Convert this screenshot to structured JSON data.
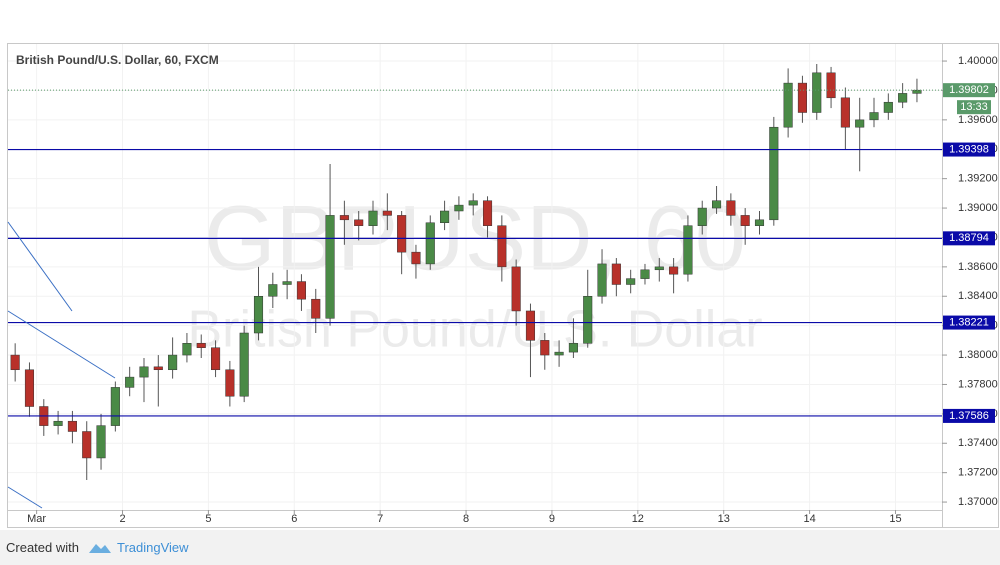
{
  "chart_data": {
    "type": "candlestick",
    "title": "British Pound/U.S. Dollar, 60, FXCM",
    "watermark": "GBPUSD, 60",
    "watermark_subtitle": "British Pound/U.S. Dollar",
    "x": [
      2,
      6,
      10,
      14,
      18,
      22,
      26,
      30,
      34,
      38,
      42,
      46,
      50,
      54,
      58,
      62,
      66,
      70,
      74,
      78,
      82,
      86,
      90,
      94,
      98,
      102,
      106,
      110,
      114,
      118,
      122,
      126,
      130,
      134,
      138,
      142,
      146,
      150,
      154,
      158,
      162,
      166,
      170,
      174,
      178,
      182,
      186,
      190,
      194,
      198,
      202,
      206,
      210,
      214,
      218,
      222,
      226,
      230,
      234,
      238,
      242,
      246,
      250,
      254
    ],
    "open": [
      1.38,
      1.379,
      1.3765,
      1.3752,
      1.3755,
      1.3748,
      1.373,
      1.3752,
      1.3778,
      1.3785,
      1.3792,
      1.379,
      1.38,
      1.3808,
      1.3805,
      1.379,
      1.3772,
      1.3815,
      1.384,
      1.3848,
      1.385,
      1.3838,
      1.3825,
      1.3895,
      1.3892,
      1.3888,
      1.3898,
      1.3895,
      1.387,
      1.3862,
      1.389,
      1.3898,
      1.3902,
      1.3905,
      1.3888,
      1.386,
      1.383,
      1.381,
      1.38,
      1.3802,
      1.3808,
      1.384,
      1.3862,
      1.3848,
      1.3852,
      1.3858,
      1.386,
      1.3855,
      1.3888,
      1.39,
      1.3905,
      1.3895,
      1.3888,
      1.3892,
      1.3955,
      1.3985,
      1.3965,
      1.3992,
      1.3975,
      1.3955,
      1.396,
      1.3965,
      1.3972,
      1.3978
    ],
    "high": [
      1.3808,
      1.3795,
      1.377,
      1.3762,
      1.3762,
      1.3755,
      1.376,
      1.3782,
      1.3792,
      1.3798,
      1.38,
      1.3812,
      1.3815,
      1.3814,
      1.381,
      1.3796,
      1.382,
      1.386,
      1.3856,
      1.3858,
      1.3855,
      1.3845,
      1.393,
      1.3905,
      1.3898,
      1.3905,
      1.391,
      1.3898,
      1.3875,
      1.3895,
      1.3905,
      1.3908,
      1.391,
      1.3908,
      1.3895,
      1.3865,
      1.3835,
      1.3815,
      1.381,
      1.3825,
      1.3858,
      1.3872,
      1.3866,
      1.3858,
      1.3862,
      1.3866,
      1.3866,
      1.3895,
      1.3905,
      1.3915,
      1.391,
      1.39,
      1.3898,
      1.3962,
      1.3995,
      1.399,
      1.3998,
      1.3996,
      1.3982,
      1.3975,
      1.3975,
      1.3978,
      1.3985,
      1.3988
    ],
    "low": [
      1.3782,
      1.3758,
      1.3745,
      1.3746,
      1.374,
      1.3715,
      1.3722,
      1.3748,
      1.3772,
      1.3768,
      1.3765,
      1.3784,
      1.3795,
      1.3798,
      1.3785,
      1.3765,
      1.3768,
      1.381,
      1.3832,
      1.3838,
      1.383,
      1.3815,
      1.382,
      1.3875,
      1.3878,
      1.3882,
      1.3885,
      1.3855,
      1.3852,
      1.3858,
      1.3885,
      1.3892,
      1.3895,
      1.388,
      1.385,
      1.382,
      1.3785,
      1.379,
      1.3792,
      1.3798,
      1.3805,
      1.3835,
      1.384,
      1.3842,
      1.3848,
      1.385,
      1.3842,
      1.385,
      1.3882,
      1.3896,
      1.3888,
      1.3875,
      1.3882,
      1.3888,
      1.3948,
      1.3958,
      1.396,
      1.3968,
      1.394,
      1.3925,
      1.3955,
      1.396,
      1.3968,
      1.3972
    ],
    "close": [
      1.379,
      1.3765,
      1.3752,
      1.3755,
      1.3748,
      1.373,
      1.3752,
      1.3778,
      1.3785,
      1.3792,
      1.379,
      1.38,
      1.3808,
      1.3805,
      1.379,
      1.3772,
      1.3815,
      1.384,
      1.3848,
      1.385,
      1.3838,
      1.3825,
      1.3895,
      1.3892,
      1.3888,
      1.3898,
      1.3895,
      1.387,
      1.3862,
      1.389,
      1.3898,
      1.3902,
      1.3905,
      1.3888,
      1.386,
      1.383,
      1.381,
      1.38,
      1.3802,
      1.3808,
      1.384,
      1.3862,
      1.3848,
      1.3852,
      1.3858,
      1.386,
      1.3855,
      1.3888,
      1.39,
      1.3905,
      1.3895,
      1.3888,
      1.3892,
      1.3955,
      1.3985,
      1.3965,
      1.3992,
      1.3975,
      1.3955,
      1.396,
      1.3965,
      1.3972,
      1.3978,
      1.39802
    ],
    "up_color": "#4a8a46",
    "down_color": "#b8312a",
    "wick_color": "#555555",
    "xlim": [
      0,
      261
    ],
    "xticks": [
      {
        "value": 8,
        "label": "Mar"
      },
      {
        "value": 32,
        "label": "2"
      },
      {
        "value": 56,
        "label": "5"
      },
      {
        "value": 80,
        "label": "6"
      },
      {
        "value": 104,
        "label": "7"
      },
      {
        "value": 128,
        "label": "8"
      },
      {
        "value": 152,
        "label": "9"
      },
      {
        "value": 176,
        "label": "12"
      },
      {
        "value": 200,
        "label": "13"
      },
      {
        "value": 224,
        "label": "14"
      },
      {
        "value": 248,
        "label": "15"
      }
    ],
    "ylim": [
      1.36946,
      1.40116
    ],
    "yticks": [
      {
        "value": 1.37,
        "label": "1.37000"
      },
      {
        "value": 1.372,
        "label": "1.37200"
      },
      {
        "value": 1.374,
        "label": "1.37400"
      },
      {
        "value": 1.376,
        "label": "1.37600"
      },
      {
        "value": 1.378,
        "label": "1.37800"
      },
      {
        "value": 1.38,
        "label": "1.38000"
      },
      {
        "value": 1.382,
        "label": "1.38200"
      },
      {
        "value": 1.384,
        "label": "1.38400"
      },
      {
        "value": 1.386,
        "label": "1.38600"
      },
      {
        "value": 1.388,
        "label": "1.38800"
      },
      {
        "value": 1.39,
        "label": "1.39000"
      },
      {
        "value": 1.392,
        "label": "1.39200"
      },
      {
        "value": 1.394,
        "label": "1.39400"
      },
      {
        "value": 1.396,
        "label": "1.39600"
      },
      {
        "value": 1.398,
        "label": "1.39800"
      },
      {
        "value": 1.4,
        "label": "1.40000"
      }
    ],
    "grid": true,
    "levels": [
      1.39398,
      1.38794,
      1.38221,
      1.37586
    ],
    "level_color": "#0a0aa8",
    "current_price": 1.39802,
    "countdown": "13:33",
    "price_color": "#5a9a6a"
  },
  "footer": {
    "created_with": "Created with",
    "brand": "TradingView"
  }
}
